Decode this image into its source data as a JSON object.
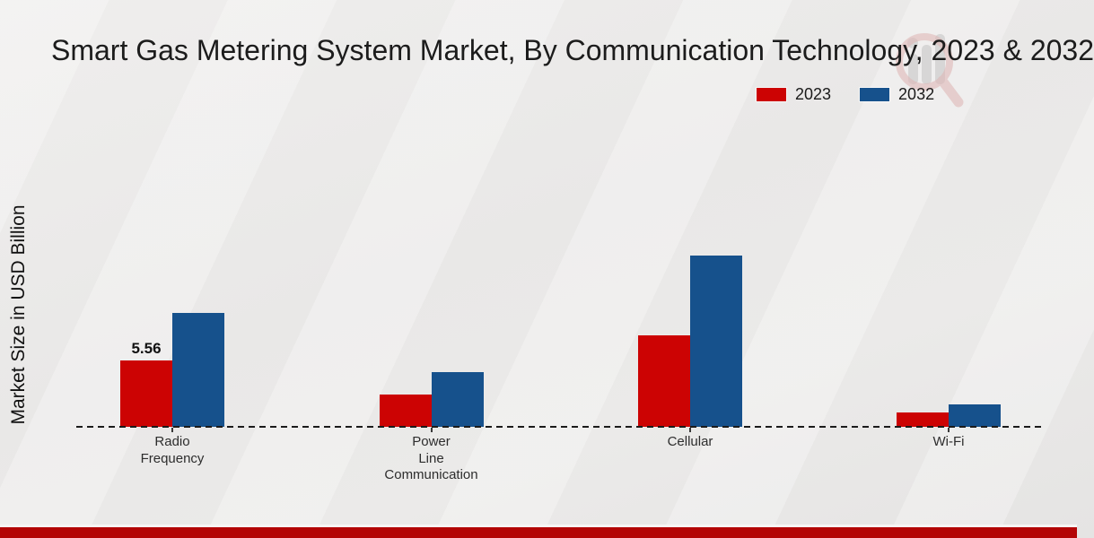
{
  "title": "Smart Gas Metering System Market, By Communication Technology, 2023 & 2032",
  "ylabel": "Market Size in USD Billion",
  "chart_data": {
    "type": "bar",
    "title": "Smart Gas Metering System Market, By Communication Technology, 2023 & 2032",
    "xlabel": "",
    "ylabel": "Market Size in USD Billion",
    "categories": [
      "Radio Frequency",
      "Power Line Communication",
      "Cellular",
      "Wi-Fi"
    ],
    "series": [
      {
        "name": "2023",
        "color": "#cc0303",
        "values": [
          5.56,
          2.67,
          7.65,
          1.23
        ]
      },
      {
        "name": "2032",
        "color": "#16518c",
        "values": [
          9.55,
          4.55,
          14.3,
          1.85
        ]
      }
    ],
    "annotations": [
      {
        "series": "2023",
        "category": "Radio Frequency",
        "text": "5.56"
      }
    ],
    "ylim": [
      0,
      16
    ],
    "grid": false,
    "legend_position": "upper right",
    "baseline_style": "dashed",
    "yaxis_ticks_visible": false
  },
  "watermark_icon": "magnifier-bar-chart-logo",
  "footer": {
    "band_color": "#b30505"
  }
}
